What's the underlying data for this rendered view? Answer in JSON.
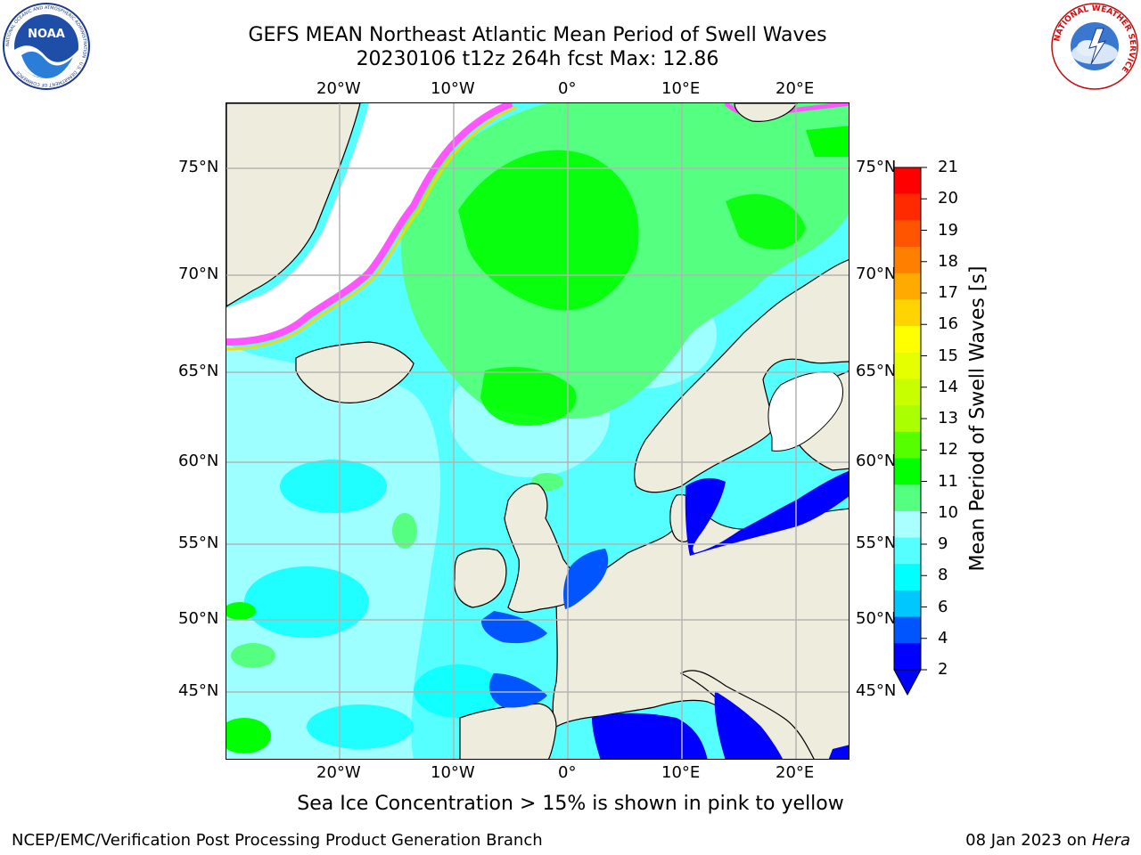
{
  "title": {
    "line1": "GEFS MEAN Northeast Atlantic Mean Period of Swell Waves",
    "line2": "20230106 t12z 264h fcst   Max: 12.86"
  },
  "map": {
    "lon_labels": [
      "20°W",
      "10°W",
      "0°",
      "10°E",
      "20°E"
    ],
    "lat_labels": [
      "75°N",
      "70°N",
      "65°N",
      "60°N",
      "55°N",
      "50°N",
      "45°N"
    ],
    "colors": {
      "land": "#eeecdc",
      "ice_free_sea": "#ffffff",
      "grid": "#b4b4b4",
      "swell_low": "#0000ff",
      "swell_mid": "#00ffff",
      "swell_green": "#00ff00"
    }
  },
  "colorbar": {
    "label": "Mean Period of Swell Waves [s]",
    "tick_labels": [
      "21",
      "20",
      "19",
      "18",
      "17",
      "16",
      "15",
      "14",
      "13",
      "12",
      "11",
      "10",
      "9",
      "8",
      "6",
      "4",
      "2"
    ],
    "colors": [
      "#ff0000",
      "#ff2a00",
      "#ff5500",
      "#ff7f00",
      "#ffaa00",
      "#ffd400",
      "#ffff00",
      "#e5ff00",
      "#c8ff00",
      "#aaff00",
      "#55ff00",
      "#00ff00",
      "#55ff80",
      "#aaffff",
      "#55ffff",
      "#00ffff",
      "#00c8ff",
      "#0055ff",
      "#0000ff"
    ]
  },
  "ice_note": "Sea Ice Concentration > 15% is shown in pink to yellow",
  "footer": {
    "left": "NCEP/EMC/Verification Post Processing Product Generation Branch",
    "date": "08 Jan 2023 on",
    "machine": "Hera"
  },
  "logos": {
    "noaa_text": "NOAA",
    "noaa_ring_text": "NATIONAL OCEANIC AND ATMOSPHERIC ADMINISTRATION · U.S. DEPARTMENT OF COMMERCE",
    "nws_ring_text": "NATIONAL WEATHER SERVICE"
  }
}
